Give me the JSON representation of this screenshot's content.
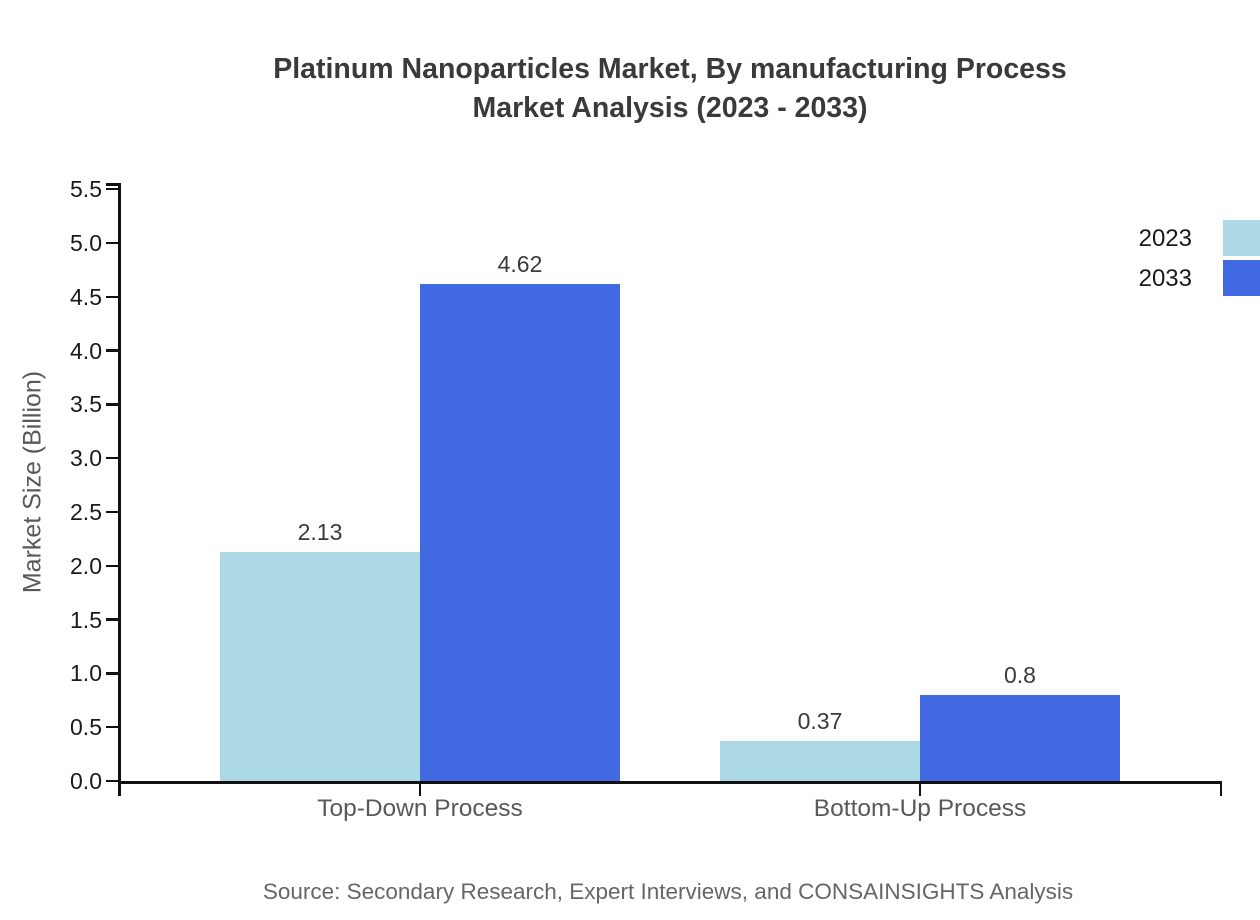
{
  "title": {
    "line1": "Platinum Nanoparticles Market, By manufacturing Process",
    "line2": "Market Analysis (2023 - 2033)"
  },
  "source": "Source: Secondary Research, Expert Interviews, and CONSAINSIGHTS Analysis",
  "chart_data": {
    "type": "bar",
    "title": "Platinum Nanoparticles Market, By manufacturing Process Market Analysis (2023 - 2033)",
    "categories": [
      "Top-Down Process",
      "Bottom-Up Process"
    ],
    "series": [
      {
        "name": "2023",
        "color": "#ADD8E6",
        "values": [
          2.13,
          0.37
        ],
        "labels": [
          "2.13",
          "0.37"
        ]
      },
      {
        "name": "2033",
        "color": "#4169E1",
        "values": [
          4.62,
          0.8
        ],
        "labels": [
          "4.62",
          "0.8"
        ]
      }
    ],
    "xlabel": "",
    "ylabel": "Market Size (Billion)",
    "ylim": [
      0,
      5.5
    ],
    "yticks": [
      "0.0",
      "0.5",
      "1.0",
      "1.5",
      "2.0",
      "2.5",
      "3.0",
      "3.5",
      "4.0",
      "4.5",
      "5.0",
      "5.5"
    ],
    "grid": false,
    "value_labels_shown": true,
    "legend_position": "top-right"
  },
  "colors": {
    "series_2023": "#ADD8E6",
    "series_2033": "#4169E1",
    "axis": "#111111",
    "title_text": "#3a3a3a",
    "tick_text": "#1a1a1a",
    "category_text": "#595959",
    "source_text": "#666666"
  }
}
